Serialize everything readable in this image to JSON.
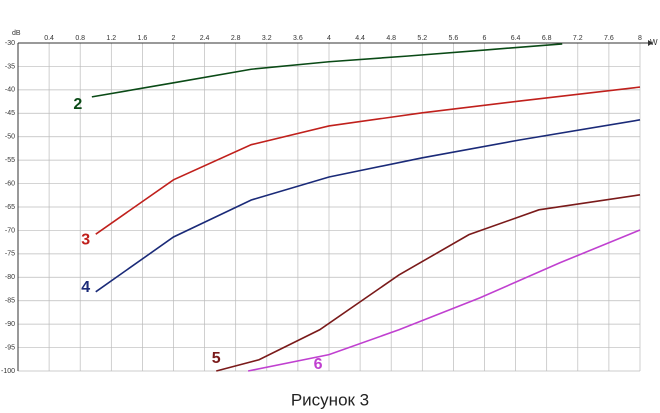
{
  "chart_data": {
    "type": "line",
    "caption": "Рисунок 3",
    "xlabel": "W",
    "ylabel": "dB",
    "xlim": [
      0,
      8
    ],
    "ylim": [
      -100,
      -30
    ],
    "xticks": [
      0.4,
      0.8,
      1.2,
      1.6,
      2,
      2.4,
      2.8,
      3.2,
      3.6,
      4,
      4.4,
      4.8,
      5.2,
      5.6,
      6,
      6.4,
      6.8,
      7.2,
      7.6,
      8
    ],
    "yticks": [
      -30,
      -35,
      -40,
      -45,
      -50,
      -55,
      -60,
      -65,
      -70,
      -75,
      -80,
      -85,
      -90,
      -95,
      -100
    ],
    "grid": true,
    "series": [
      {
        "name": "2",
        "color": "#0a4a16",
        "x": [
          0.95,
          2,
          3,
          4,
          5,
          6,
          7
        ],
        "values": [
          -41.5,
          -38.5,
          -35.6,
          -34,
          -32.8,
          -31.5,
          -30.2
        ]
      },
      {
        "name": "3",
        "color": "#c0201c",
        "x": [
          1,
          2,
          3,
          4,
          5.2,
          6.45,
          8
        ],
        "values": [
          -70.8,
          -59.2,
          -51.7,
          -47.7,
          -44.9,
          -42.4,
          -39.4
        ]
      },
      {
        "name": "4",
        "color": "#1a2a78",
        "x": [
          1,
          2,
          3,
          4,
          5.2,
          6.45,
          8
        ],
        "values": [
          -83.1,
          -71.4,
          -63.5,
          -58.6,
          -54.5,
          -50.7,
          -46.4
        ]
      },
      {
        "name": "5",
        "color": "#7a1a1a",
        "x": [
          2.55,
          3.1,
          3.88,
          4.9,
          5.8,
          6.7,
          8
        ],
        "values": [
          -100,
          -97.6,
          -91.2,
          -79.5,
          -70.9,
          -65.6,
          -62.4
        ]
      },
      {
        "name": "6",
        "color": "#c040d0",
        "x": [
          2.96,
          4,
          4.9,
          5.94,
          6.97,
          8
        ],
        "values": [
          -100,
          -96.5,
          -91.2,
          -84.4,
          -76.9,
          -69.9
        ]
      }
    ]
  }
}
